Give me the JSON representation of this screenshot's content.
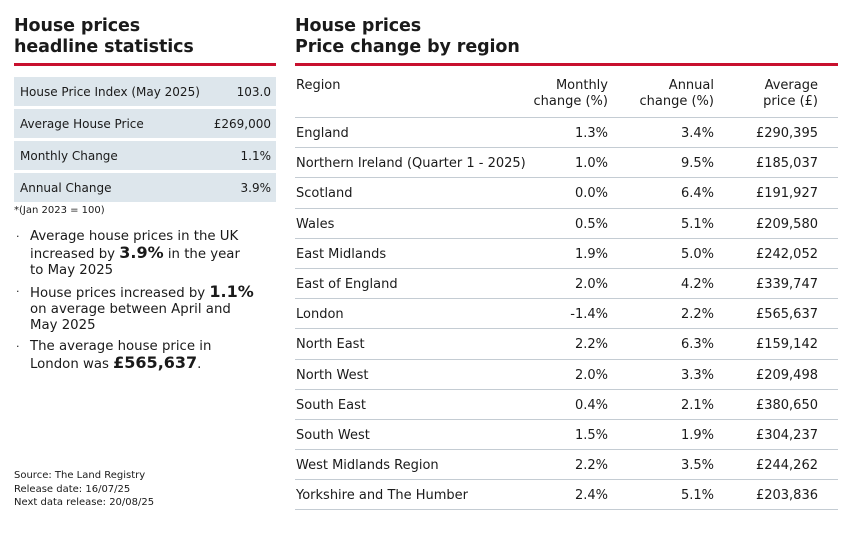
{
  "left": {
    "title_line1": "House prices",
    "title_line2": "headline statistics",
    "stats": [
      {
        "label": "House Price Index (May 2025)",
        "value": "103.0"
      },
      {
        "label": "Average House Price",
        "value": "£269,000"
      },
      {
        "label": "Monthly Change",
        "value": "1.1%"
      },
      {
        "label": "Annual Change",
        "value": "3.9%"
      }
    ],
    "footnote": "*(Jan 2023 = 100)",
    "bullets": [
      {
        "before": "Average house prices in the UK increased by ",
        "bold": "3.9%",
        "after": " in the year to May 2025"
      },
      {
        "before": "House prices increased by ",
        "bold": "1.1%",
        "after": " on average between April and May 2025"
      },
      {
        "before": "The average house price in London was ",
        "bold": "£565,637",
        "after": "."
      }
    ],
    "bullet_glyph": "·",
    "source": "Source: The Land Registry",
    "release_date": "Release date: 16/07/25",
    "next_release": "Next data release: 20/08/25"
  },
  "right": {
    "title_line1": "House prices",
    "title_line2": "Price change by region",
    "headers": {
      "region": "Region",
      "monthly_l1": "Monthly",
      "monthly_l2": "change (%)",
      "annual_l1": "Annual",
      "annual_l2": "change (%)",
      "avg_l1": "Average",
      "avg_l2": "price (£)"
    },
    "rows": [
      {
        "region": "England",
        "monthly": "1.3%",
        "annual": "3.4%",
        "price": "£290,395"
      },
      {
        "region": "Northern Ireland (Quarter 1 - 2025)",
        "monthly": "1.0%",
        "annual": "9.5%",
        "price": "£185,037"
      },
      {
        "region": "Scotland",
        "monthly": "0.0%",
        "annual": "6.4%",
        "price": "£191,927"
      },
      {
        "region": "Wales",
        "monthly": "0.5%",
        "annual": "5.1%",
        "price": "£209,580"
      },
      {
        "region": "East Midlands",
        "monthly": "1.9%",
        "annual": "5.0%",
        "price": "£242,052"
      },
      {
        "region": "East of England",
        "monthly": "2.0%",
        "annual": "4.2%",
        "price": "£339,747"
      },
      {
        "region": "London",
        "monthly": "-1.4%",
        "annual": "2.2%",
        "price": "£565,637"
      },
      {
        "region": "North East",
        "monthly": "2.2%",
        "annual": "6.3%",
        "price": "£159,142"
      },
      {
        "region": "North West",
        "monthly": "2.0%",
        "annual": "3.3%",
        "price": "£209,498"
      },
      {
        "region": "South East",
        "monthly": "0.4%",
        "annual": "2.1%",
        "price": "£380,650"
      },
      {
        "region": "South West",
        "monthly": "1.5%",
        "annual": "1.9%",
        "price": "£304,237"
      },
      {
        "region": "West Midlands Region",
        "monthly": "2.2%",
        "annual": "3.5%",
        "price": "£244,262"
      },
      {
        "region": "Yorkshire and The Humber",
        "monthly": "2.4%",
        "annual": "5.1%",
        "price": "£203,836"
      }
    ]
  },
  "colors": {
    "accent_red": "#c8102e",
    "stat_bg": "#dde6ec",
    "rule": "#c4ccd3",
    "text": "#1a1a1a"
  }
}
